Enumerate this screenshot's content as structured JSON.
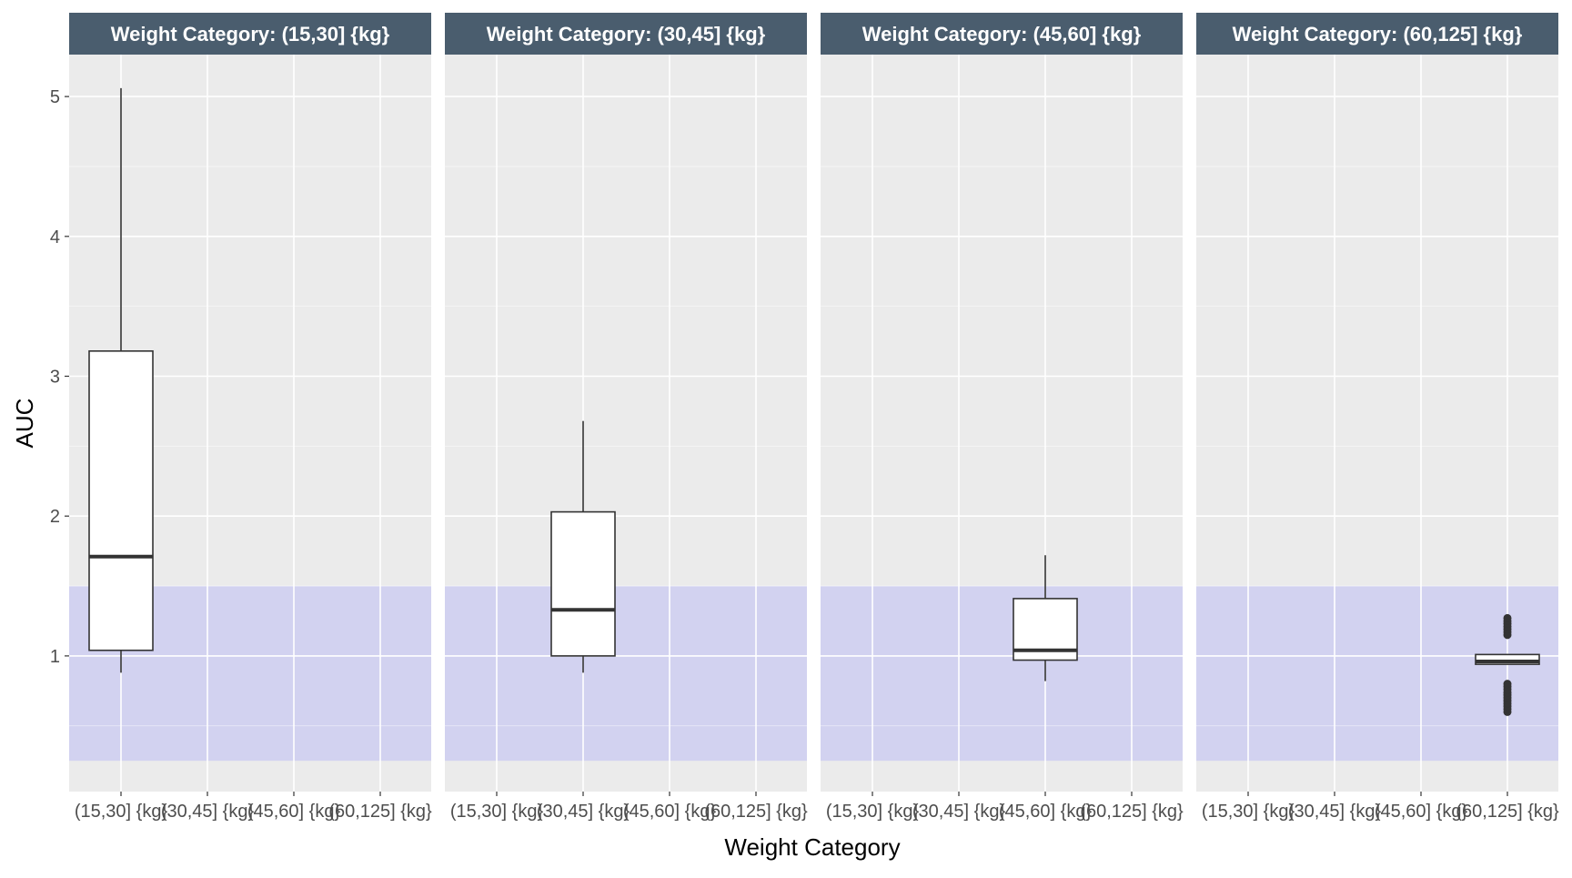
{
  "chart_data": {
    "type": "boxplot",
    "xlabel": "Weight Category",
    "ylabel": "AUC",
    "ylim": [
      0.03,
      5.3
    ],
    "y_ticks": [
      1,
      2,
      3,
      4,
      5
    ],
    "y_tick_labels": [
      "1",
      "2",
      "3",
      "4",
      "5"
    ],
    "categories": [
      "(15,30] {kg}",
      "(30,45] {kg}",
      "(45,60] {kg}",
      "(60,125] {kg}"
    ],
    "reference_band": {
      "ymin": 0.25,
      "ymax": 1.5,
      "color": "#d2d2f0"
    },
    "colors": {
      "panel_bg": "#ebebeb",
      "grid": "#ffffff",
      "strip_bg": "#4a5d6e",
      "box_fill": "#ffffff",
      "box_line": "#333333"
    },
    "panels": [
      {
        "title": "Weight Category: (15,30] {kg}",
        "category": "(15,30] {kg}",
        "box": {
          "whisker_low": 0.88,
          "q1": 1.04,
          "median": 1.71,
          "q3": 3.18,
          "whisker_high": 5.06
        },
        "outliers": []
      },
      {
        "title": "Weight Category: (30,45] {kg}",
        "category": "(30,45] {kg}",
        "box": {
          "whisker_low": 0.88,
          "q1": 1.0,
          "median": 1.33,
          "q3": 2.03,
          "whisker_high": 2.68
        },
        "outliers": []
      },
      {
        "title": "Weight Category: (45,60] {kg}",
        "category": "(45,60] {kg}",
        "box": {
          "whisker_low": 0.82,
          "q1": 0.97,
          "median": 1.04,
          "q3": 1.41,
          "whisker_high": 1.72
        },
        "outliers": []
      },
      {
        "title": "Weight Category: (60,125] {kg}",
        "category": "(60,125] {kg}",
        "box": {
          "whisker_low": 0.94,
          "q1": 0.94,
          "median": 0.96,
          "q3": 1.01,
          "whisker_high": 1.01
        },
        "outliers": [
          0.6,
          0.62,
          0.64,
          0.66,
          0.68,
          0.7,
          0.72,
          0.74,
          0.76,
          0.78,
          0.8,
          1.15,
          1.17,
          1.19,
          1.21,
          1.23,
          1.25,
          1.27
        ]
      }
    ]
  }
}
